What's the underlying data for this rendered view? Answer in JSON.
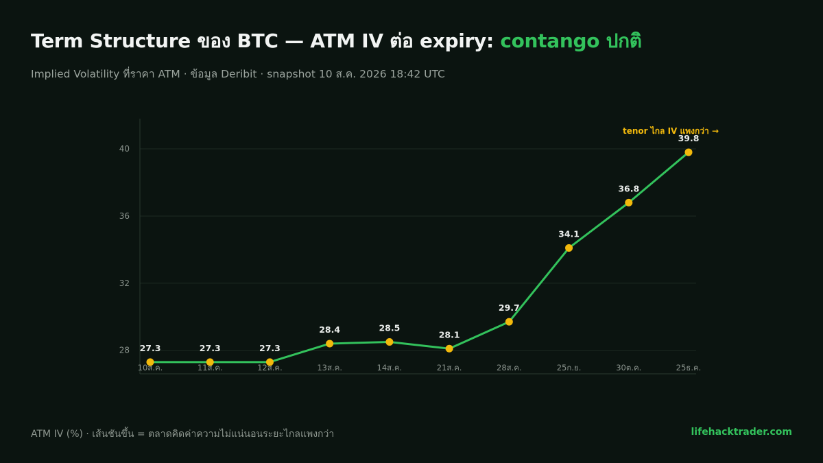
{
  "header": {
    "title_main": "Term Structure ของ BTC — ATM IV ต่อ expiry: ",
    "title_accent": "contango ปกติ",
    "subtitle": "Implied Volatility ที่ราคา ATM · ข้อมูล Deribit · snapshot 10 ส.ค. 2026 18:42 UTC"
  },
  "footer": {
    "note": "ATM IV (%) · เส้นชันขึ้น = ตลาดคิดค่าความไม่แน่นอนระยะไกลแพงกว่า",
    "brand": "lifehacktrader.com"
  },
  "colors": {
    "background": "#0b1410",
    "line": "#33c25c",
    "marker": "#f2b90c",
    "annotation": "#f2b90c",
    "accent": "#33c25c"
  },
  "chart_data": {
    "type": "line",
    "categories": [
      "10ส.ค.",
      "11ส.ค.",
      "12ส.ค.",
      "13ส.ค.",
      "14ส.ค.",
      "21ส.ค.",
      "28ส.ค.",
      "25ก.ย.",
      "30ต.ค.",
      "25ธ.ค."
    ],
    "values": [
      27.3,
      27.3,
      27.3,
      28.4,
      28.5,
      28.1,
      29.7,
      34.1,
      36.8,
      39.8
    ],
    "value_labels": [
      "27.3",
      "27.3",
      "27.3",
      "28.4",
      "28.5",
      "28.1",
      "29.7",
      "34.1",
      "36.8",
      "39.8"
    ],
    "yticks": [
      28,
      32,
      36,
      40
    ],
    "ytick_labels": [
      "28",
      "32",
      "36",
      "40"
    ],
    "ylim": [
      26.6,
      41.8
    ],
    "xlabel": "",
    "ylabel": "",
    "grid": true,
    "annotation": "tenor ไกล IV แพงกว่า →"
  }
}
